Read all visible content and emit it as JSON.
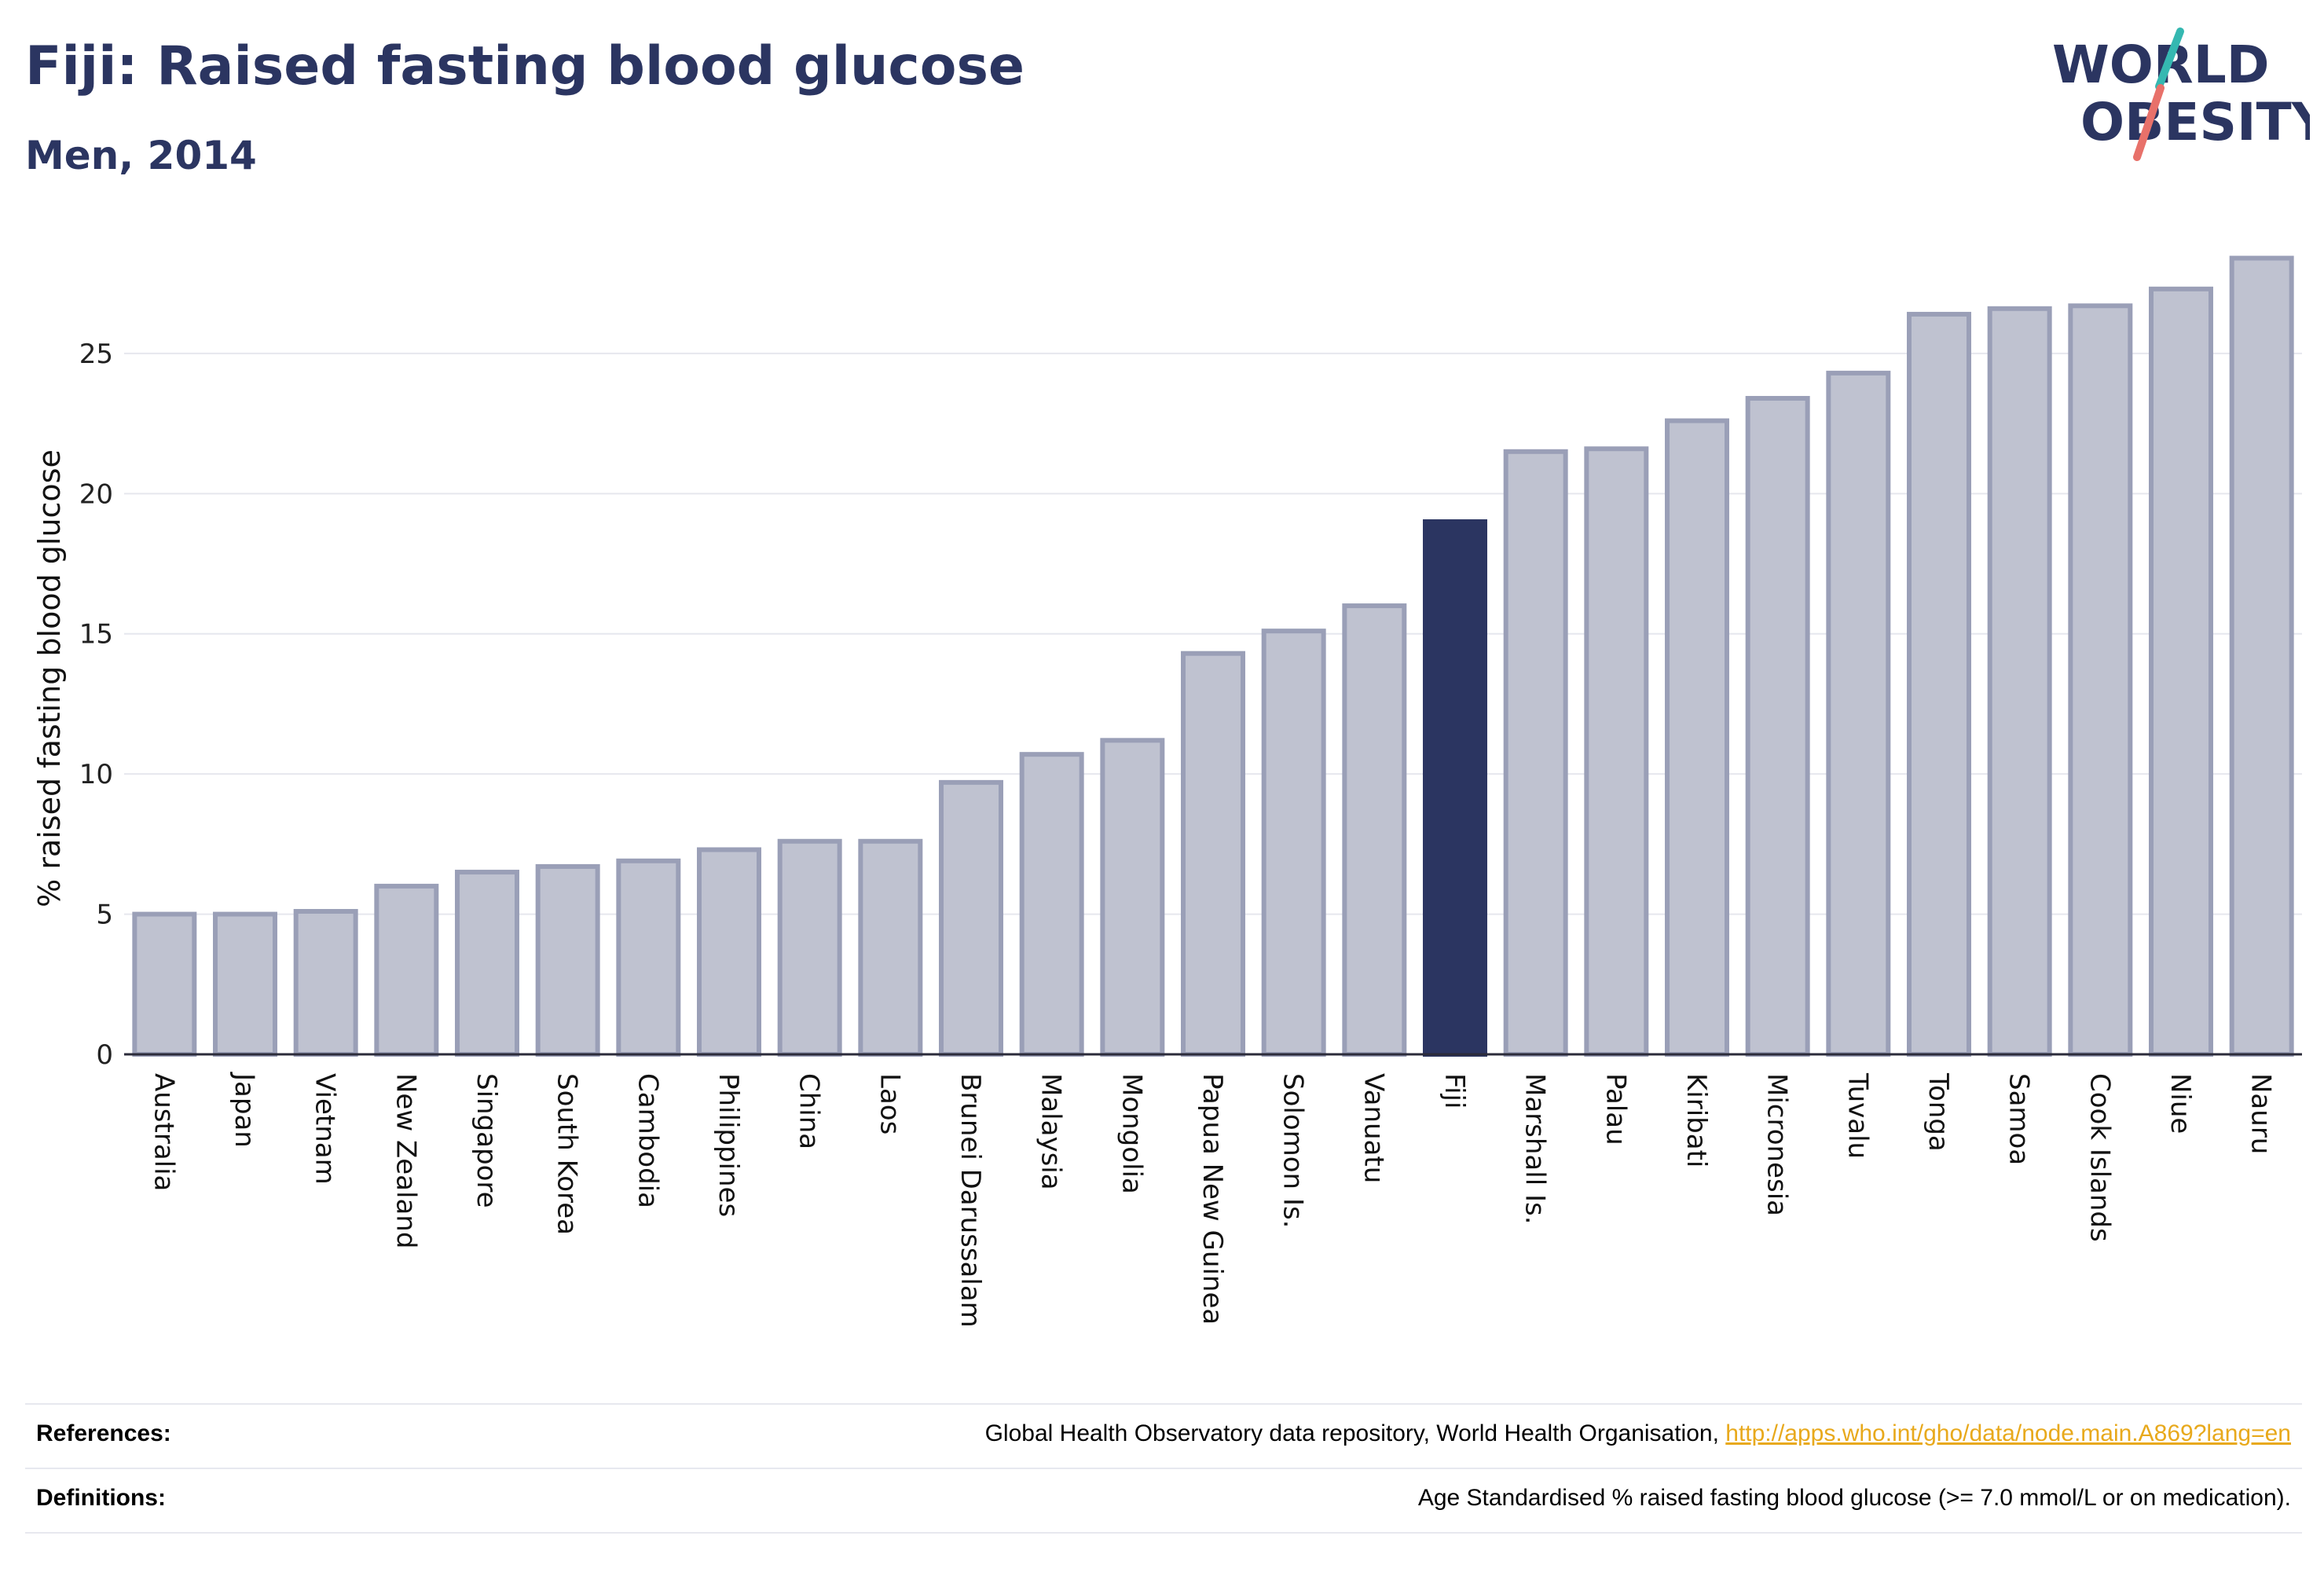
{
  "header": {
    "title": "Fiji: Raised fasting blood glucose",
    "subtitle": "Men, 2014"
  },
  "logo": {
    "line1": "WORLD",
    "line2": "OBESITY",
    "colors": {
      "text": "#2b3561",
      "slash_top": "#35b8b1",
      "slash_bottom": "#e8716a"
    }
  },
  "colors": {
    "bar_fill": "#bfc2d0",
    "bar_stroke": "#9a9fb7",
    "highlight": "#2b3561",
    "grid": "#e6e7ee",
    "axis": "#2b2b3a"
  },
  "chart_data": {
    "type": "bar",
    "title": "Fiji: Raised fasting blood glucose",
    "subtitle": "Men, 2014",
    "xlabel": "",
    "ylabel": "% raised fasting blood glucose",
    "ylim": [
      0,
      28.5
    ],
    "yticks": [
      0,
      5,
      10,
      15,
      20,
      25
    ],
    "grid": true,
    "highlight": "Fiji",
    "categories": [
      "Australia",
      "Japan",
      "Vietnam",
      "New Zealand",
      "Singapore",
      "South Korea",
      "Cambodia",
      "Philippines",
      "China",
      "Laos",
      "Brunei Darussalam",
      "Malaysia",
      "Mongolia",
      "Papua New Guinea",
      "Solomon Is.",
      "Vanuatu",
      "Fiji",
      "Marshall Is.",
      "Palau",
      "Kiribati",
      "Micronesia",
      "Tuvalu",
      "Tonga",
      "Samoa",
      "Cook Islands",
      "Niue",
      "Nauru"
    ],
    "values": [
      5.0,
      5.0,
      5.1,
      6.0,
      6.5,
      6.7,
      6.9,
      7.3,
      7.6,
      7.6,
      9.7,
      10.7,
      11.2,
      14.3,
      15.1,
      16.0,
      19.0,
      21.5,
      21.6,
      22.6,
      23.4,
      24.3,
      26.4,
      26.6,
      26.7,
      27.3,
      28.4
    ]
  },
  "footer": {
    "references_label": "References:",
    "references_text": "Global Health Observatory data repository, World Health Organisation, ",
    "references_link": "http://apps.who.int/gho/data/node.main.A869?lang=en",
    "definitions_label": "Definitions:",
    "definitions_text": "Age Standardised % raised fasting blood glucose (>= 7.0 mmol/L or on medication)."
  }
}
